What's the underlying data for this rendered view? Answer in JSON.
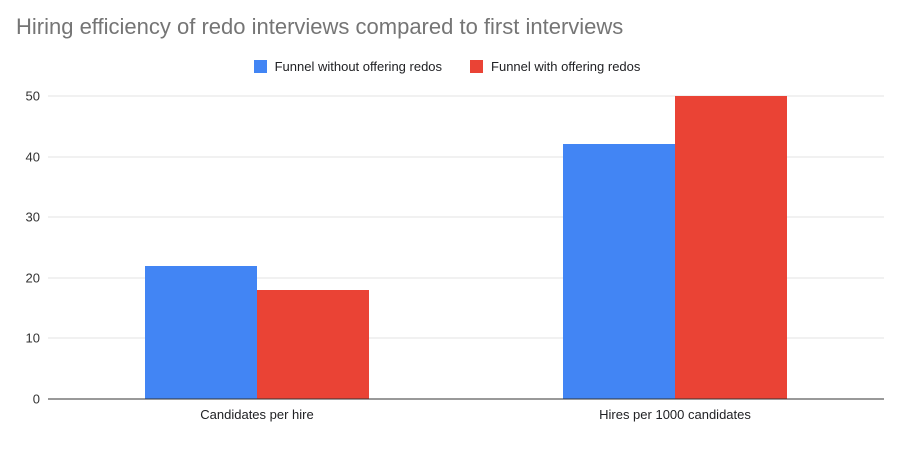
{
  "title": "Hiring efficiency of redo interviews compared to first interviews",
  "legend": [
    {
      "label": "Funnel without offering redos",
      "color": "#4285F4"
    },
    {
      "label": "Funnel with offering redos",
      "color": "#EA4335"
    }
  ],
  "chart_data": {
    "type": "bar",
    "title": "Hiring efficiency of redo interviews compared to first interviews",
    "categories": [
      "Candidates per hire",
      "Hires per 1000 candidates"
    ],
    "series": [
      {
        "name": "Funnel without offering redos",
        "color": "#4285F4",
        "values": [
          22,
          42
        ]
      },
      {
        "name": "Funnel with offering redos",
        "color": "#EA4335",
        "values": [
          18,
          50
        ]
      }
    ],
    "xlabel": "",
    "ylabel": "",
    "ylim": [
      0,
      50
    ],
    "yticks": [
      0,
      10,
      20,
      30,
      40,
      50
    ],
    "grid": true,
    "legend_position": "top"
  }
}
